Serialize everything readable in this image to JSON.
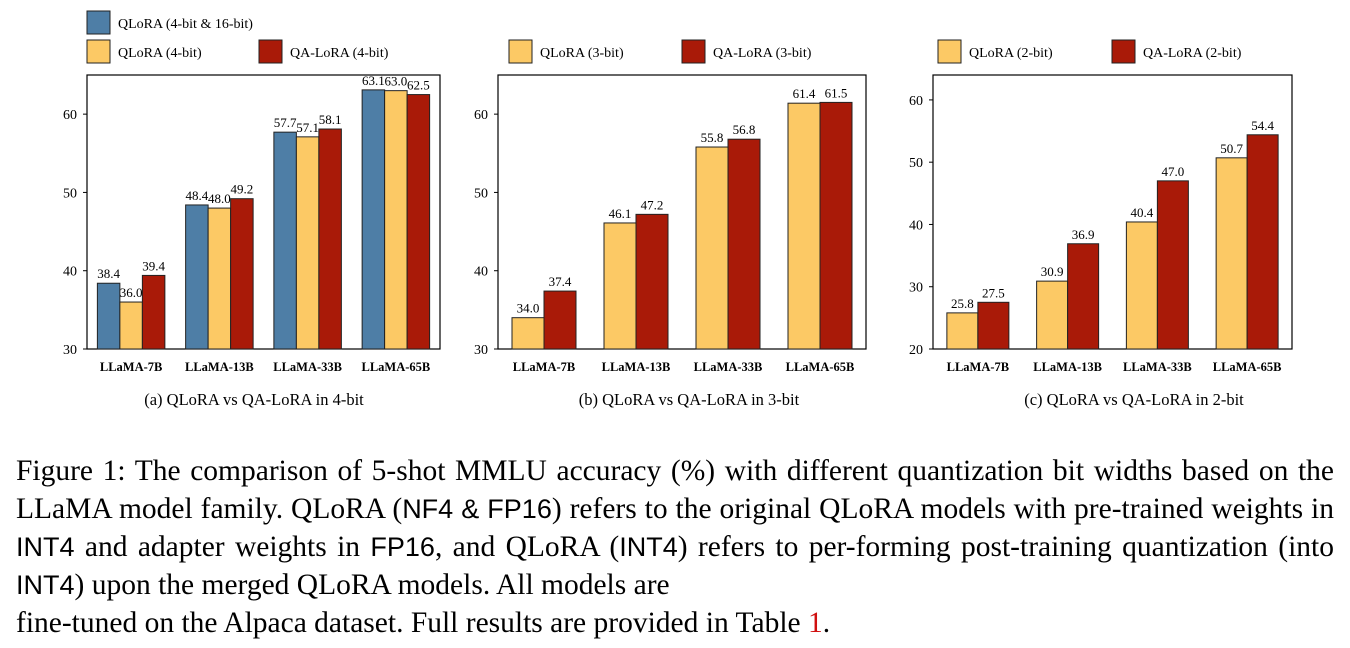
{
  "colors": {
    "qlora_16": "#4e7ea6",
    "qlora_low": "#fcc965",
    "qa_lora": "#a91a08",
    "ref_link": "#d01010"
  },
  "chart_data": [
    {
      "type": "bar",
      "title": "(a) QLoRA vs QA-LoRA in 4-bit",
      "xlabel": "",
      "ylabel": "",
      "categories": [
        "LLaMA-7B",
        "LLaMA-13B",
        "LLaMA-33B",
        "LLaMA-65B"
      ],
      "ylim": [
        30,
        65
      ],
      "yticks": [
        30,
        40,
        50,
        60
      ],
      "legend_position": "top",
      "series": [
        {
          "name": "QLoRA (4-bit & 16-bit)",
          "color_key": "qlora_16",
          "values": [
            38.4,
            48.4,
            57.7,
            63.1
          ],
          "labels": [
            "38.4",
            "48.4",
            "57.7",
            "63.1"
          ]
        },
        {
          "name": "QLoRA (4-bit)",
          "color_key": "qlora_low",
          "values": [
            36.0,
            48.0,
            57.1,
            63.0
          ],
          "labels": [
            "36.0",
            "48.0",
            "57.1",
            "63.0"
          ]
        },
        {
          "name": "QA-LoRA (4-bit)",
          "color_key": "qa_lora",
          "values": [
            39.4,
            49.2,
            58.1,
            62.5
          ],
          "labels": [
            "39.4",
            "49.2",
            "58.1",
            "62.5"
          ]
        }
      ]
    },
    {
      "type": "bar",
      "title": "(b) QLoRA vs QA-LoRA in 3-bit",
      "xlabel": "",
      "ylabel": "",
      "categories": [
        "LLaMA-7B",
        "LLaMA-13B",
        "LLaMA-33B",
        "LLaMA-65B"
      ],
      "ylim": [
        30,
        65
      ],
      "yticks": [
        30,
        40,
        50,
        60
      ],
      "legend_position": "top",
      "series": [
        {
          "name": "QLoRA (3-bit)",
          "color_key": "qlora_low",
          "values": [
            34.0,
            46.1,
            55.8,
            61.4
          ],
          "labels": [
            "34.0",
            "46.1",
            "55.8",
            "61.4"
          ]
        },
        {
          "name": "QA-LoRA (3-bit)",
          "color_key": "qa_lora",
          "values": [
            37.4,
            47.2,
            56.8,
            61.5
          ],
          "labels": [
            "37.4",
            "47.2",
            "56.8",
            "61.5"
          ]
        }
      ]
    },
    {
      "type": "bar",
      "title": "(c) QLoRA vs QA-LoRA in 2-bit",
      "xlabel": "",
      "ylabel": "",
      "categories": [
        "LLaMA-7B",
        "LLaMA-13B",
        "LLaMA-33B",
        "LLaMA-65B"
      ],
      "ylim": [
        20,
        64
      ],
      "yticks": [
        20,
        30,
        40,
        50,
        60
      ],
      "legend_position": "top",
      "series": [
        {
          "name": "QLoRA (2-bit)",
          "color_key": "qlora_low",
          "values": [
            25.8,
            30.9,
            40.4,
            50.7
          ],
          "labels": [
            "25.8",
            "30.9",
            "40.4",
            "50.7"
          ]
        },
        {
          "name": "QA-LoRA (2-bit)",
          "color_key": "qa_lora",
          "values": [
            27.5,
            36.9,
            47.0,
            54.4
          ],
          "labels": [
            "27.5",
            "36.9",
            "47.0",
            "54.4"
          ]
        }
      ]
    }
  ],
  "caption": {
    "p1_a": "Figure 1: The comparison of 5-shot MMLU accuracy (%) with different quantization bit widths based on the LLaMA model family. QLoRA (",
    "p1_sans1": "NF4 & FP16",
    "p1_b": ") refers to the original QLoRA models with pre-trained weights in ",
    "p1_sans2": "INT4",
    "p1_c": " and adapter weights in ",
    "p1_sans3": "FP16",
    "p1_d": ", and QLoRA (",
    "p1_sans4": "INT4",
    "p1_e": ") refers to per-forming post-training quantization (into ",
    "p1_sans5": "INT4",
    "p1_f": ") upon the merged QLoRA models. All models are",
    "p2_a": "fine-tuned on the Alpaca dataset. Full results are provided in Table ",
    "p2_ref": "1",
    "p2_b": "."
  }
}
